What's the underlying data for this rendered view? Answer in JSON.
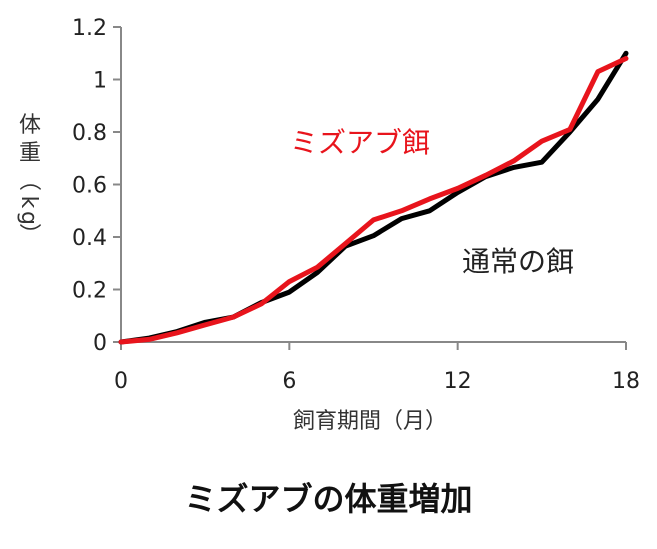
{
  "chart_data": {
    "type": "line",
    "title": "ミズアブの体重増加",
    "xlabel": "飼育期間（月）",
    "ylabel": "体重（kg）",
    "xlim": [
      0,
      18
    ],
    "ylim": [
      0,
      1.2
    ],
    "xticks": [
      "0",
      "6",
      "12",
      "18"
    ],
    "yticks": [
      "0",
      "0.2",
      "0.4",
      "0.6",
      "0.8",
      "1",
      "1.2"
    ],
    "grid": false,
    "legend": "inline labels",
    "x": [
      0,
      1,
      2,
      3,
      4,
      5,
      6,
      7,
      8,
      9,
      10,
      11,
      12,
      13,
      14,
      15,
      16,
      17,
      18
    ],
    "series": [
      {
        "name": "ミズアブ餌",
        "color": "#e8141c",
        "values": [
          0,
          0.01,
          0.035,
          0.065,
          0.095,
          0.145,
          0.23,
          0.285,
          0.375,
          0.465,
          0.5,
          0.545,
          0.585,
          0.635,
          0.69,
          0.765,
          0.81,
          1.03,
          1.08
        ]
      },
      {
        "name": "通常の餌",
        "color": "#000000",
        "values": [
          0,
          0.015,
          0.04,
          0.075,
          0.095,
          0.15,
          0.19,
          0.265,
          0.365,
          0.405,
          0.47,
          0.5,
          0.57,
          0.63,
          0.665,
          0.685,
          0.8,
          0.925,
          1.1
        ]
      }
    ]
  }
}
